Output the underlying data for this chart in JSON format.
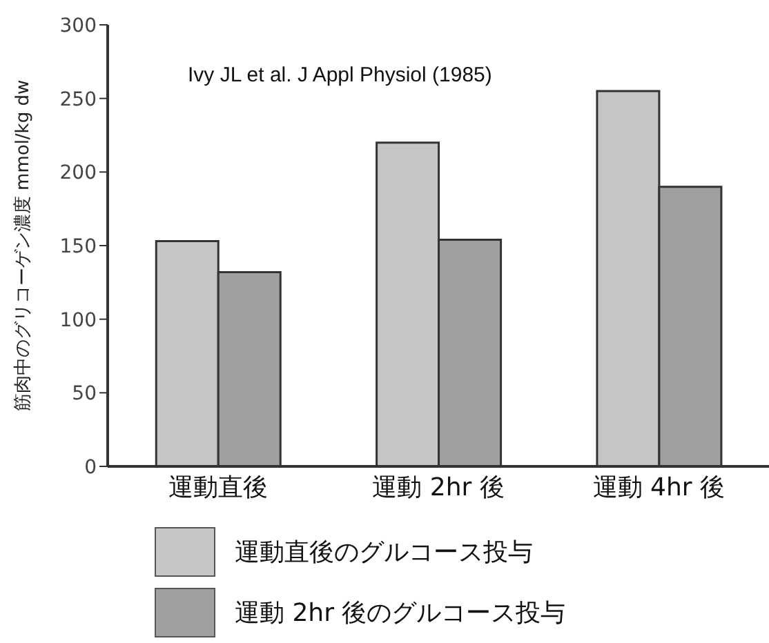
{
  "chart_data": {
    "type": "bar",
    "ylabel": "筋肉中のグリコーゲン濃度 mmol/kg dw",
    "categories": [
      "運動直後",
      "運動 2hr 後",
      "運動 4hr 後"
    ],
    "series": [
      {
        "name": "運動直後のグルコース投与",
        "color": "#c4c5c4",
        "values": [
          153,
          220,
          255
        ]
      },
      {
        "name": "運動 2hr 後のグルコース投与",
        "color": "#a0a0a0",
        "values": [
          132,
          154,
          190
        ]
      }
    ],
    "ylim": [
      0,
      300
    ],
    "yticks": [
      0,
      50,
      100,
      150,
      200,
      250,
      300
    ],
    "grid": false,
    "legend": "bottom",
    "annotations": [
      "Ivy JL et al. J Appl Physiol (1985)"
    ]
  }
}
